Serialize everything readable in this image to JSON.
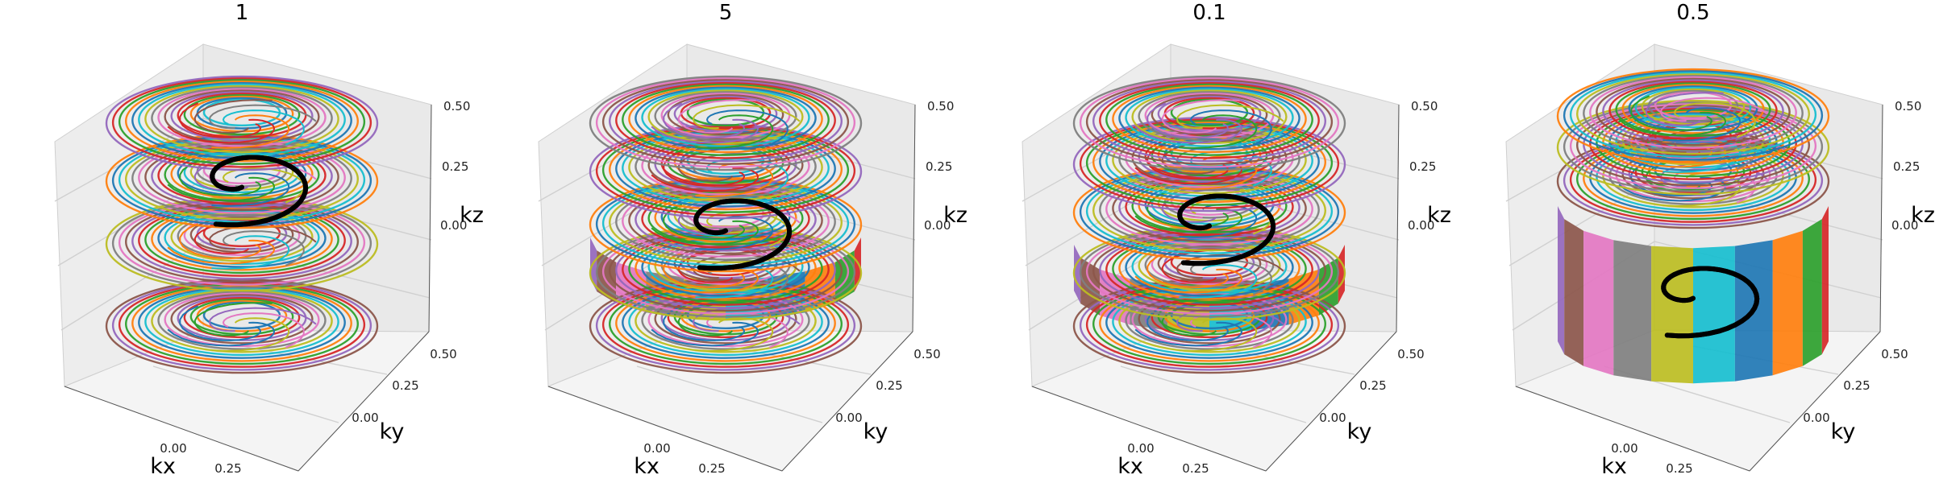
{
  "chart_data": [
    {
      "type": "line",
      "title": "1",
      "xlabel": "kx",
      "ylabel": "ky",
      "zlabel": "kz",
      "x_ticks": [
        "0.00",
        "0.25"
      ],
      "y_ticks": [
        "0.00",
        "0.25",
        "0.50"
      ],
      "z_ticks": [
        "0.00",
        "0.25",
        "0.50"
      ],
      "xlim": [
        -0.5,
        0.5
      ],
      "ylim": [
        -0.5,
        0.5
      ],
      "zlim": [
        -0.5,
        0.5
      ],
      "grid": true,
      "layer_z": [
        -0.42,
        -0.08,
        0.18,
        0.42
      ],
      "highlight_z": 0.18,
      "colored_band": false,
      "highlight_color": "#000000"
    },
    {
      "type": "line",
      "title": "5",
      "xlabel": "kx",
      "ylabel": "ky",
      "zlabel": "kz",
      "x_ticks": [
        "0.00",
        "0.25"
      ],
      "y_ticks": [
        "0.00",
        "0.25",
        "0.50"
      ],
      "z_ticks": [
        "0.00",
        "0.25",
        "0.50"
      ],
      "xlim": [
        -0.5,
        0.5
      ],
      "ylim": [
        -0.5,
        0.5
      ],
      "zlim": [
        -0.5,
        0.5
      ],
      "grid": true,
      "layer_z": [
        -0.42,
        -0.2,
        0.0,
        0.22,
        0.42
      ],
      "highlight_z": 0.0,
      "colored_band": true,
      "band_z": [
        -0.22,
        -0.05
      ],
      "highlight_color": "#000000"
    },
    {
      "type": "line",
      "title": "0.1",
      "xlabel": "kx",
      "ylabel": "ky",
      "zlabel": "kz",
      "x_ticks": [
        "0.00",
        "0.25"
      ],
      "y_ticks": [
        "0.00",
        "0.25",
        "0.50"
      ],
      "z_ticks": [
        "0.00",
        "0.25",
        "0.50"
      ],
      "xlim": [
        -0.5,
        0.5
      ],
      "ylim": [
        -0.5,
        0.5
      ],
      "zlim": [
        -0.5,
        0.5
      ],
      "grid": true,
      "layer_z": [
        -0.42,
        -0.2,
        0.05,
        0.25,
        0.42
      ],
      "highlight_z": 0.02,
      "colored_band": true,
      "band_z": [
        -0.27,
        -0.08
      ],
      "highlight_color": "#000000"
    },
    {
      "type": "line",
      "title": "0.5",
      "xlabel": "kx",
      "ylabel": "ky",
      "zlabel": "kz",
      "x_ticks": [
        "0.00",
        "0.25"
      ],
      "y_ticks": [
        "0.00",
        "0.25",
        "0.50"
      ],
      "z_ticks": [
        "0.00",
        "0.25",
        "0.50"
      ],
      "xlim": [
        -0.5,
        0.5
      ],
      "ylim": [
        -0.5,
        0.5
      ],
      "zlim": [
        -0.5,
        0.5
      ],
      "grid": true,
      "layer_z": [
        0.18,
        0.32,
        0.45
      ],
      "highlight_z": -0.28,
      "colored_band": true,
      "band_z": [
        -0.48,
        0.08
      ],
      "highlight_color": "#000000"
    }
  ],
  "palette": [
    "#1f77b4",
    "#ff7f0e",
    "#2ca02c",
    "#d62728",
    "#9467bd",
    "#8c564b",
    "#e377c2",
    "#7f7f7f",
    "#bcbd22",
    "#17becf"
  ]
}
